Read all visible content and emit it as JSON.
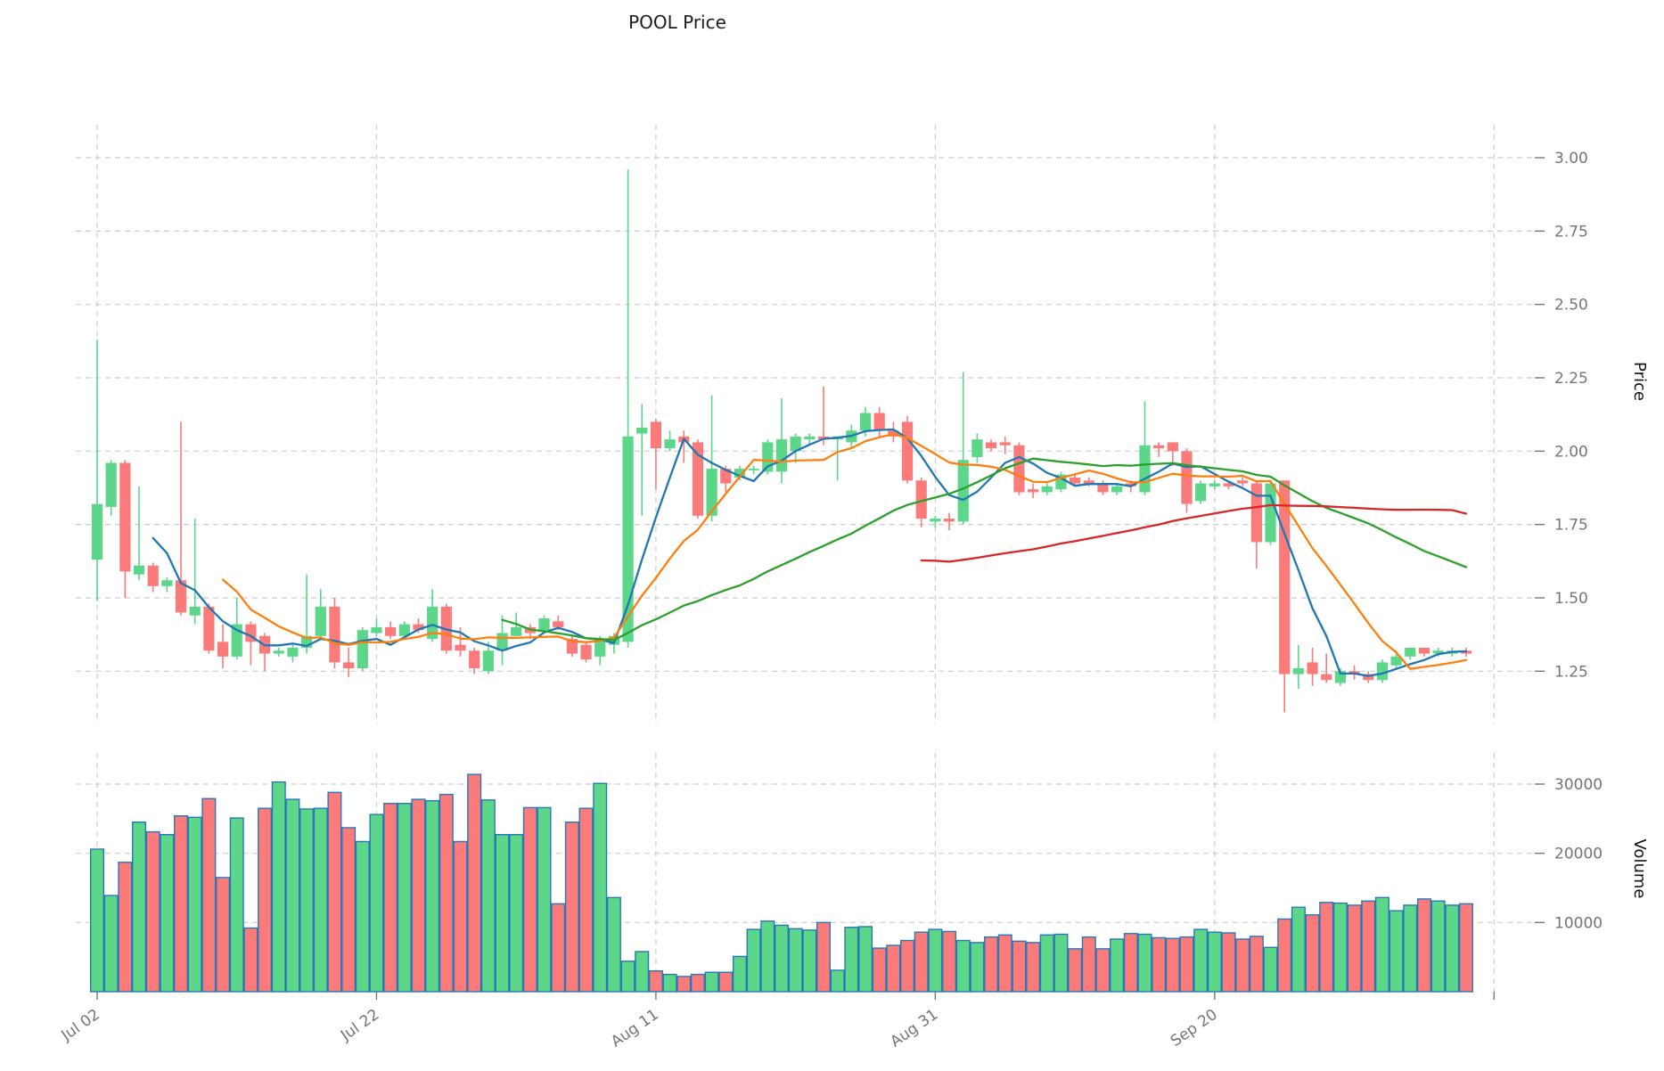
{
  "title": "POOL Price",
  "price_axis": {
    "label": "Price",
    "ticks": [
      1.25,
      1.5,
      1.75,
      2.0,
      2.25,
      2.5,
      2.75,
      3.0
    ]
  },
  "volume_axis": {
    "label": "Volume",
    "ticks": [
      10000,
      20000,
      30000
    ]
  },
  "x_axis": {
    "ticks": [
      {
        "index": 0,
        "label": "Jul 02"
      },
      {
        "index": 20,
        "label": "Jul 22"
      },
      {
        "index": 40,
        "label": "Aug 11"
      },
      {
        "index": 60,
        "label": "Aug 31"
      },
      {
        "index": 80,
        "label": "Sep 20"
      },
      {
        "index": 100,
        "label": ""
      }
    ]
  },
  "colors": {
    "up": "#5cd689",
    "down": "#fb7b7b",
    "volume_edge": "#2878b8",
    "grid": "#cdcdcd",
    "tick_text": "#757575",
    "ma_colors": [
      "#1f77b4",
      "#ff7f0e",
      "#2ca02c",
      "#d62728"
    ]
  },
  "chart_data": {
    "type": "candlestick+volume",
    "title": "POOL Price",
    "ylabel_price": "Price",
    "ylabel_volume": "Volume",
    "grid": true,
    "price_ylim": [
      1.07,
      3.12
    ],
    "volume_ylim": [
      0,
      34500
    ],
    "moving_averages": [
      {
        "window": 5,
        "color": "#1f77b4"
      },
      {
        "window": 10,
        "color": "#ff7f0e"
      },
      {
        "window": 30,
        "color": "#2ca02c"
      },
      {
        "window": 60,
        "color": "#d62728"
      }
    ],
    "dates": [
      "Jul 02",
      "Jul 03",
      "Jul 04",
      "Jul 05",
      "Jul 06",
      "Jul 07",
      "Jul 08",
      "Jul 09",
      "Jul 10",
      "Jul 11",
      "Jul 12",
      "Jul 13",
      "Jul 14",
      "Jul 15",
      "Jul 16",
      "Jul 17",
      "Jul 18",
      "Jul 19",
      "Jul 20",
      "Jul 21",
      "Jul 22",
      "Jul 23",
      "Jul 24",
      "Jul 25",
      "Jul 26",
      "Jul 27",
      "Jul 28",
      "Jul 29",
      "Jul 30",
      "Jul 31",
      "Aug 01",
      "Aug 02",
      "Aug 03",
      "Aug 04",
      "Aug 05",
      "Aug 06",
      "Aug 07",
      "Aug 08",
      "Aug 09",
      "Aug 10",
      "Aug 11",
      "Aug 12",
      "Aug 13",
      "Aug 14",
      "Aug 15",
      "Aug 16",
      "Aug 17",
      "Aug 18",
      "Aug 19",
      "Aug 20",
      "Aug 21",
      "Aug 22",
      "Aug 23",
      "Aug 24",
      "Aug 25",
      "Aug 26",
      "Aug 27",
      "Aug 28",
      "Aug 29",
      "Aug 30",
      "Aug 31",
      "Sep 01",
      "Sep 02",
      "Sep 03",
      "Sep 04",
      "Sep 05",
      "Sep 06",
      "Sep 07",
      "Sep 08",
      "Sep 09",
      "Sep 10",
      "Sep 11",
      "Sep 12",
      "Sep 13",
      "Sep 14",
      "Sep 15",
      "Sep 16",
      "Sep 17",
      "Sep 18",
      "Sep 19",
      "Sep 20",
      "Sep 21",
      "Sep 22",
      "Sep 23",
      "Sep 24",
      "Sep 25",
      "Sep 26",
      "Sep 27",
      "Sep 28",
      "Sep 29",
      "Sep 30",
      "Oct 01",
      "Oct 02",
      "Oct 03",
      "Oct 04",
      "Oct 05",
      "Oct 06",
      "Oct 07",
      "Oct 08"
    ],
    "open": [
      1.63,
      1.81,
      1.96,
      1.58,
      1.61,
      1.54,
      1.56,
      1.44,
      1.47,
      1.35,
      1.3,
      1.41,
      1.37,
      1.31,
      1.3,
      1.33,
      1.37,
      1.47,
      1.28,
      1.26,
      1.38,
      1.4,
      1.37,
      1.41,
      1.36,
      1.47,
      1.34,
      1.32,
      1.25,
      1.32,
      1.37,
      1.4,
      1.39,
      1.42,
      1.36,
      1.34,
      1.3,
      1.34,
      1.35,
      2.06,
      2.1,
      2.01,
      2.05,
      2.03,
      1.78,
      1.94,
      1.91,
      1.94,
      1.93,
      1.93,
      2.0,
      2.04,
      2.05,
      2.04,
      2.03,
      2.07,
      2.13,
      2.07,
      2.1,
      1.9,
      1.76,
      1.77,
      1.76,
      1.98,
      2.03,
      2.03,
      2.02,
      1.87,
      1.86,
      1.87,
      1.91,
      1.9,
      1.89,
      1.86,
      1.89,
      1.86,
      2.02,
      2.03,
      2.0,
      1.83,
      1.88,
      1.89,
      1.9,
      1.89,
      1.69,
      1.9,
      1.24,
      1.28,
      1.24,
      1.21,
      1.25,
      1.24,
      1.22,
      1.27,
      1.3,
      1.33,
      1.31,
      1.31,
      1.32
    ],
    "high": [
      2.38,
      1.97,
      1.97,
      1.88,
      1.62,
      1.57,
      2.1,
      1.77,
      1.48,
      1.41,
      1.5,
      1.42,
      1.38,
      1.33,
      1.34,
      1.58,
      1.53,
      1.5,
      1.33,
      1.4,
      1.43,
      1.42,
      1.42,
      1.43,
      1.53,
      1.48,
      1.4,
      1.33,
      1.35,
      1.44,
      1.45,
      1.41,
      1.44,
      1.44,
      1.37,
      1.35,
      1.37,
      1.38,
      2.96,
      2.16,
      2.11,
      2.07,
      2.07,
      2.04,
      2.19,
      1.95,
      1.95,
      1.95,
      2.04,
      2.18,
      2.06,
      2.06,
      2.22,
      2.05,
      2.09,
      2.15,
      2.15,
      2.1,
      2.12,
      1.91,
      1.78,
      1.79,
      2.27,
      2.06,
      2.04,
      2.05,
      2.03,
      1.89,
      1.89,
      1.93,
      1.92,
      1.91,
      1.9,
      1.89,
      1.9,
      2.17,
      2.03,
      2.03,
      2.01,
      1.9,
      1.9,
      1.9,
      1.91,
      1.9,
      1.9,
      1.9,
      1.34,
      1.33,
      1.31,
      1.26,
      1.27,
      1.25,
      1.29,
      1.32,
      1.33,
      1.33,
      1.33,
      1.33,
      1.33
    ],
    "low": [
      1.49,
      1.78,
      1.5,
      1.56,
      1.52,
      1.52,
      1.44,
      1.41,
      1.31,
      1.26,
      1.29,
      1.27,
      1.25,
      1.3,
      1.28,
      1.31,
      1.36,
      1.26,
      1.23,
      1.25,
      1.37,
      1.36,
      1.37,
      1.38,
      1.35,
      1.31,
      1.3,
      1.24,
      1.24,
      1.27,
      1.37,
      1.36,
      1.38,
      1.39,
      1.3,
      1.28,
      1.27,
      1.31,
      1.33,
      1.78,
      1.87,
      2.0,
      1.96,
      1.77,
      1.76,
      1.86,
      1.9,
      1.92,
      1.92,
      1.89,
      1.96,
      2.02,
      2.02,
      1.9,
      2.01,
      2.05,
      2.05,
      2.03,
      1.89,
      1.74,
      1.74,
      1.73,
      1.75,
      1.96,
      2.0,
      1.99,
      1.85,
      1.84,
      1.85,
      1.86,
      1.88,
      1.88,
      1.85,
      1.85,
      1.86,
      1.85,
      1.98,
      1.95,
      1.79,
      1.82,
      1.87,
      1.87,
      1.88,
      1.6,
      1.68,
      1.11,
      1.19,
      1.2,
      1.21,
      1.2,
      1.22,
      1.21,
      1.21,
      1.26,
      1.29,
      1.3,
      1.3,
      1.3,
      1.3
    ],
    "close": [
      1.82,
      1.96,
      1.59,
      1.61,
      1.54,
      1.56,
      1.45,
      1.47,
      1.32,
      1.3,
      1.41,
      1.35,
      1.31,
      1.32,
      1.33,
      1.37,
      1.47,
      1.28,
      1.26,
      1.39,
      1.4,
      1.37,
      1.41,
      1.39,
      1.47,
      1.32,
      1.32,
      1.26,
      1.32,
      1.38,
      1.4,
      1.38,
      1.43,
      1.4,
      1.31,
      1.29,
      1.36,
      1.37,
      2.05,
      2.08,
      2.01,
      2.04,
      2.03,
      1.78,
      1.94,
      1.89,
      1.94,
      1.94,
      2.03,
      2.04,
      2.05,
      2.05,
      2.04,
      2.05,
      2.07,
      2.13,
      2.07,
      2.05,
      1.9,
      1.77,
      1.77,
      1.76,
      1.97,
      2.04,
      2.01,
      2.02,
      1.86,
      1.86,
      1.88,
      1.92,
      1.89,
      1.89,
      1.86,
      1.88,
      1.88,
      2.02,
      2.01,
      2.0,
      1.82,
      1.89,
      1.89,
      1.88,
      1.89,
      1.69,
      1.89,
      1.24,
      1.26,
      1.24,
      1.22,
      1.25,
      1.24,
      1.22,
      1.28,
      1.3,
      1.33,
      1.31,
      1.32,
      1.32,
      1.31
    ],
    "volume": [
      20600,
      13900,
      18700,
      24500,
      23100,
      22700,
      25400,
      25200,
      27900,
      16500,
      25100,
      9200,
      26500,
      30300,
      27800,
      26400,
      26500,
      28800,
      23700,
      21700,
      25600,
      27200,
      27200,
      27800,
      27600,
      28500,
      21700,
      31400,
      27700,
      22700,
      22700,
      26600,
      26600,
      12700,
      24500,
      26500,
      30100,
      13600,
      4400,
      5800,
      3000,
      2500,
      2200,
      2500,
      2800,
      2800,
      5100,
      9000,
      10200,
      9600,
      9100,
      8900,
      10000,
      3100,
      9300,
      9400,
      6300,
      6700,
      7400,
      8600,
      9000,
      8700,
      7400,
      7100,
      7900,
      8200,
      7300,
      7100,
      8200,
      8300,
      6200,
      7900,
      6200,
      7600,
      8400,
      8300,
      7800,
      7700,
      7900,
      9000,
      8600,
      8500,
      7600,
      8000,
      6400,
      10500,
      12200,
      11100,
      12900,
      12800,
      12500,
      13100,
      13600,
      11700,
      12500,
      13400,
      13100,
      12500,
      12700
    ]
  }
}
